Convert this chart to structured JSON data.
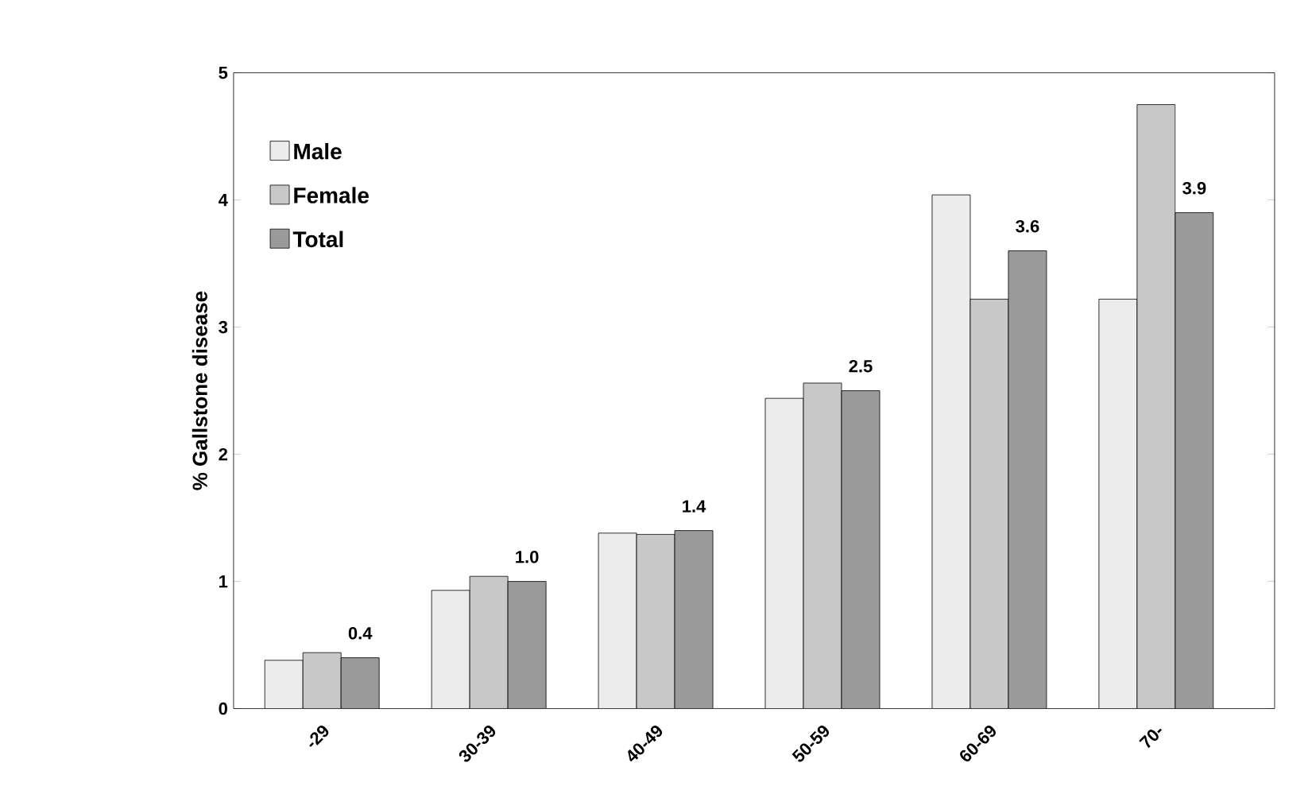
{
  "chart_data": {
    "type": "bar",
    "ylabel": "% Gallstone disease",
    "categories": [
      "-29",
      "30-39",
      "40-49",
      "50-59",
      "60-69",
      "70-"
    ],
    "series": [
      {
        "name": "Male",
        "color": "#ececec",
        "values": [
          0.38,
          0.93,
          1.38,
          2.44,
          4.04,
          3.22
        ]
      },
      {
        "name": "Female",
        "color": "#c8c8c8",
        "values": [
          0.44,
          1.04,
          1.37,
          2.56,
          3.22,
          4.75
        ]
      },
      {
        "name": "Total",
        "color": "#9a9a9a",
        "values": [
          0.4,
          1.0,
          1.4,
          2.5,
          3.6,
          3.9
        ],
        "value_labels": [
          "0.4",
          "1.0",
          "1.4",
          "2.5",
          "3.6",
          "3.9"
        ]
      }
    ],
    "ylim": [
      0,
      5
    ],
    "yticks": [
      0,
      1,
      2,
      3,
      4,
      5
    ],
    "grid": false,
    "legend": "top left"
  }
}
